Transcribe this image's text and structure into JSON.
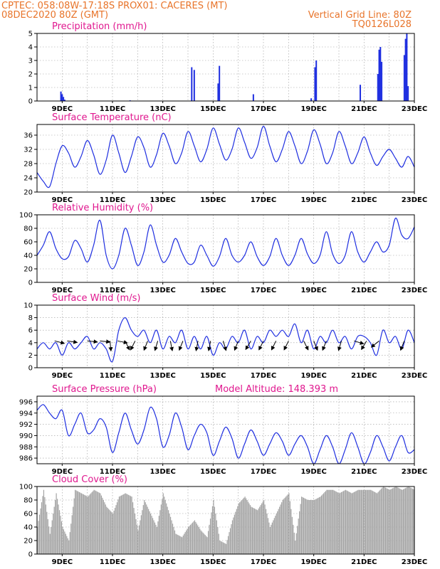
{
  "header": {
    "line1_left": "CPTEC:   058:08W-17:18S   PROX01: CACERES (MT)",
    "line2_left": "08DEC2020 80Z (GMT)",
    "line2_right": "Vertical Grid Line: 80Z",
    "line3_right": "TQ0126L028"
  },
  "colors": {
    "header": "#e8742a",
    "title": "#e0188f",
    "series": "#1f2fe0",
    "cloud": "#a4a4a4",
    "wind_arrow": "#000000"
  },
  "x_axis": {
    "start_day": 8,
    "end_day": 23,
    "tick_labels": [
      "9DEC",
      "11DEC",
      "13DEC",
      "15DEC",
      "17DEC",
      "19DEC",
      "21DEC",
      "23DEC"
    ],
    "tick_days": [
      9,
      11,
      13,
      15,
      17,
      19,
      21,
      23
    ]
  },
  "chart_data": [
    {
      "type": "bar",
      "title": "Precipitation  (mm/h)",
      "ylim": [
        0,
        5
      ],
      "yticks": [
        0,
        1,
        2,
        3,
        4,
        5
      ],
      "bars": [
        {
          "day": 8.95,
          "value": 0.7
        },
        {
          "day": 9.0,
          "value": 0.5
        },
        {
          "day": 9.05,
          "value": 0.3
        },
        {
          "day": 9.1,
          "value": 0.1
        },
        {
          "day": 11.7,
          "value": 0.05
        },
        {
          "day": 14.15,
          "value": 2.5
        },
        {
          "day": 14.25,
          "value": 2.3
        },
        {
          "day": 15.2,
          "value": 1.3
        },
        {
          "day": 15.25,
          "value": 2.6
        },
        {
          "day": 16.6,
          "value": 0.5
        },
        {
          "day": 18.9,
          "value": 0.2
        },
        {
          "day": 19.05,
          "value": 2.5
        },
        {
          "day": 19.1,
          "value": 3.0
        },
        {
          "day": 20.85,
          "value": 1.2
        },
        {
          "day": 21.55,
          "value": 2.0
        },
        {
          "day": 21.6,
          "value": 3.8
        },
        {
          "day": 21.65,
          "value": 4.0
        },
        {
          "day": 21.7,
          "value": 2.9
        },
        {
          "day": 22.6,
          "value": 3.4
        },
        {
          "day": 22.65,
          "value": 4.6
        },
        {
          "day": 22.7,
          "value": 5.0
        },
        {
          "day": 22.75,
          "value": 1.1
        }
      ]
    },
    {
      "type": "line",
      "title": "Surface Temperature  (nC)",
      "ylim": [
        20,
        39
      ],
      "yticks": [
        20,
        24,
        28,
        32,
        36
      ],
      "x": [
        8.0,
        8.25,
        8.5,
        8.75,
        9.0,
        9.25,
        9.5,
        9.75,
        10.0,
        10.25,
        10.5,
        10.75,
        11.0,
        11.25,
        11.5,
        11.75,
        12.0,
        12.25,
        12.5,
        12.75,
        13.0,
        13.25,
        13.5,
        13.75,
        14.0,
        14.25,
        14.5,
        14.75,
        15.0,
        15.25,
        15.5,
        15.75,
        16.0,
        16.25,
        16.5,
        16.75,
        17.0,
        17.25,
        17.5,
        17.75,
        18.0,
        18.25,
        18.5,
        18.75,
        19.0,
        19.25,
        19.5,
        19.75,
        20.0,
        20.25,
        20.5,
        20.75,
        21.0,
        21.25,
        21.5,
        21.75,
        22.0,
        22.25,
        22.5,
        22.75,
        23.0
      ],
      "y": [
        25.5,
        23.0,
        21.5,
        28.0,
        33.0,
        31.0,
        27.0,
        30.0,
        34.5,
        30.5,
        25.0,
        29.0,
        36.0,
        31.0,
        25.5,
        30.0,
        35.5,
        32.5,
        27.0,
        30.5,
        36.5,
        33.0,
        28.0,
        31.0,
        37.0,
        33.0,
        28.5,
        32.0,
        38.0,
        33.5,
        29.0,
        32.0,
        38.0,
        34.0,
        29.5,
        32.5,
        38.5,
        33.0,
        28.5,
        32.0,
        37.0,
        33.0,
        28.0,
        31.5,
        37.5,
        33.5,
        28.0,
        31.0,
        37.0,
        33.0,
        28.0,
        31.0,
        35.5,
        31.0,
        27.5,
        30.0,
        32.0,
        29.5,
        27.0,
        30.0,
        27.0
      ]
    },
    {
      "type": "line",
      "title": "Relative Humidity  (%)",
      "ylim": [
        0,
        100
      ],
      "yticks": [
        0,
        20,
        40,
        60,
        80,
        100
      ],
      "x": [
        8.0,
        8.25,
        8.5,
        8.75,
        9.0,
        9.25,
        9.5,
        9.75,
        10.0,
        10.25,
        10.5,
        10.75,
        11.0,
        11.25,
        11.5,
        11.75,
        12.0,
        12.25,
        12.5,
        12.75,
        13.0,
        13.25,
        13.5,
        13.75,
        14.0,
        14.25,
        14.5,
        14.75,
        15.0,
        15.25,
        15.5,
        15.75,
        16.0,
        16.25,
        16.5,
        16.75,
        17.0,
        17.25,
        17.5,
        17.75,
        18.0,
        18.25,
        18.5,
        18.75,
        19.0,
        19.25,
        19.5,
        19.75,
        20.0,
        20.25,
        20.5,
        20.75,
        21.0,
        21.25,
        21.5,
        21.75,
        22.0,
        22.25,
        22.5,
        22.75,
        23.0
      ],
      "y": [
        40,
        55,
        75,
        50,
        35,
        38,
        62,
        50,
        30,
        55,
        92,
        40,
        20,
        40,
        80,
        55,
        25,
        45,
        85,
        55,
        30,
        40,
        65,
        45,
        28,
        30,
        55,
        40,
        24,
        38,
        65,
        40,
        30,
        40,
        60,
        38,
        25,
        38,
        65,
        40,
        25,
        40,
        65,
        42,
        28,
        40,
        75,
        42,
        28,
        40,
        75,
        45,
        30,
        45,
        60,
        45,
        55,
        95,
        70,
        65,
        82
      ]
    },
    {
      "type": "line",
      "title": "Surface Wind  (m/s)",
      "ylim": [
        0,
        10
      ],
      "yticks": [
        0,
        2,
        4,
        6,
        8,
        10
      ],
      "x": [
        8.0,
        8.25,
        8.5,
        8.75,
        9.0,
        9.25,
        9.5,
        9.75,
        10.0,
        10.25,
        10.5,
        10.75,
        11.0,
        11.25,
        11.5,
        11.75,
        12.0,
        12.25,
        12.5,
        12.75,
        13.0,
        13.25,
        13.5,
        13.75,
        14.0,
        14.25,
        14.5,
        14.75,
        15.0,
        15.25,
        15.5,
        15.75,
        16.0,
        16.25,
        16.5,
        16.75,
        17.0,
        17.25,
        17.5,
        17.75,
        18.0,
        18.25,
        18.5,
        18.75,
        19.0,
        19.25,
        19.5,
        19.75,
        20.0,
        20.25,
        20.5,
        20.75,
        21.0,
        21.25,
        21.5,
        21.75,
        22.0,
        22.25,
        22.5,
        22.75,
        23.0
      ],
      "y": [
        3,
        4,
        3,
        4,
        2,
        4,
        3,
        4,
        5,
        3,
        4,
        3,
        1,
        6,
        8,
        6,
        5,
        6,
        4,
        6,
        3,
        5,
        4,
        6,
        3,
        5,
        3,
        5,
        2,
        4,
        3,
        5,
        4,
        6,
        3,
        5,
        4,
        6,
        5,
        6,
        5,
        7,
        4,
        6,
        3,
        5,
        4,
        6,
        4,
        5,
        3,
        5,
        5,
        4,
        2,
        6,
        4,
        5,
        3,
        6,
        4
      ],
      "arrows": [
        {
          "day": 8.7,
          "dx": 1,
          "dy": 0.25
        },
        {
          "day": 9.2,
          "dx": 1,
          "dy": 0.15
        },
        {
          "day": 10.0,
          "dx": 1,
          "dy": 0.1
        },
        {
          "day": 10.5,
          "dx": 1,
          "dy": 0.1
        },
        {
          "day": 10.9,
          "dx": 0.1,
          "dy": 1
        },
        {
          "day": 11.2,
          "dx": 1,
          "dy": 0.2
        },
        {
          "day": 11.5,
          "dx": 0.5,
          "dy": 1
        },
        {
          "day": 11.9,
          "dx": -0.5,
          "dy": 1
        },
        {
          "day": 12.4,
          "dx": -0.4,
          "dy": 1
        },
        {
          "day": 12.8,
          "dx": -0.3,
          "dy": 1
        },
        {
          "day": 13.3,
          "dx": 0.2,
          "dy": 1
        },
        {
          "day": 13.8,
          "dx": -0.4,
          "dy": 1
        },
        {
          "day": 14.4,
          "dx": -0.2,
          "dy": 1
        },
        {
          "day": 14.9,
          "dx": -0.2,
          "dy": 1
        },
        {
          "day": 15.4,
          "dx": 0.3,
          "dy": 1
        },
        {
          "day": 16.0,
          "dx": -0.4,
          "dy": 1
        },
        {
          "day": 16.5,
          "dx": -0.6,
          "dy": 1
        },
        {
          "day": 17.0,
          "dx": -0.5,
          "dy": 1
        },
        {
          "day": 17.5,
          "dx": -0.5,
          "dy": 1
        },
        {
          "day": 18.0,
          "dx": -0.5,
          "dy": 1
        },
        {
          "day": 18.6,
          "dx": 0.5,
          "dy": 1
        },
        {
          "day": 19.0,
          "dx": 0.4,
          "dy": 1
        },
        {
          "day": 19.5,
          "dx": -0.4,
          "dy": 1
        },
        {
          "day": 20.1,
          "dx": -0.3,
          "dy": 1
        },
        {
          "day": 20.6,
          "dx": 1,
          "dy": 0.3
        },
        {
          "day": 21.1,
          "dx": -0.6,
          "dy": 1
        },
        {
          "day": 21.6,
          "dx": -1,
          "dy": 0.8
        },
        {
          "day": 22.6,
          "dx": -0.4,
          "dy": 1
        }
      ]
    },
    {
      "type": "line",
      "title": "Surface Pressure  (hPa)",
      "subtitle": "Model Altitude:  148.393  m",
      "ylim": [
        985,
        997
      ],
      "yticks": [
        986,
        988,
        990,
        992,
        994,
        996
      ],
      "x": [
        8.0,
        8.25,
        8.5,
        8.75,
        9.0,
        9.25,
        9.5,
        9.75,
        10.0,
        10.25,
        10.5,
        10.75,
        11.0,
        11.25,
        11.5,
        11.75,
        12.0,
        12.25,
        12.5,
        12.75,
        13.0,
        13.25,
        13.5,
        13.75,
        14.0,
        14.25,
        14.5,
        14.75,
        15.0,
        15.25,
        15.5,
        15.75,
        16.0,
        16.25,
        16.5,
        16.75,
        17.0,
        17.25,
        17.5,
        17.75,
        18.0,
        18.25,
        18.5,
        18.75,
        19.0,
        19.25,
        19.5,
        19.75,
        20.0,
        20.25,
        20.5,
        20.75,
        21.0,
        21.25,
        21.5,
        21.75,
        22.0,
        22.25,
        22.5,
        22.75,
        23.0
      ],
      "y": [
        994.5,
        995.5,
        994.0,
        993.0,
        994.5,
        990.0,
        992.0,
        994.0,
        990.5,
        991.0,
        993.0,
        991.5,
        987.0,
        990.5,
        994.0,
        991.0,
        988.5,
        991.0,
        995.0,
        993.0,
        988.0,
        990.0,
        994.0,
        991.5,
        987.5,
        990.0,
        992.0,
        990.5,
        986.5,
        989.0,
        991.5,
        989.5,
        986.0,
        988.5,
        991.0,
        989.0,
        986.5,
        988.5,
        990.5,
        989.0,
        986.5,
        988.5,
        990.0,
        988.0,
        985.0,
        987.5,
        990.0,
        988.0,
        985.0,
        987.5,
        990.5,
        988.0,
        985.0,
        987.0,
        990.0,
        988.0,
        985.5,
        988.0,
        990.0,
        987.0,
        987.5
      ]
    },
    {
      "type": "area",
      "title": "Cloud Cover  (%)",
      "ylim": [
        0,
        100
      ],
      "yticks": [
        0,
        20,
        40,
        60,
        80,
        100
      ],
      "x": [
        8.0,
        8.25,
        8.5,
        8.75,
        9.0,
        9.25,
        9.5,
        9.75,
        10.0,
        10.25,
        10.5,
        10.75,
        11.0,
        11.25,
        11.5,
        11.75,
        12.0,
        12.25,
        12.5,
        12.75,
        13.0,
        13.25,
        13.5,
        13.75,
        14.0,
        14.25,
        14.5,
        14.75,
        15.0,
        15.25,
        15.5,
        15.75,
        16.0,
        16.25,
        16.5,
        16.75,
        17.0,
        17.25,
        17.5,
        17.75,
        18.0,
        18.25,
        18.5,
        18.75,
        19.0,
        19.25,
        19.5,
        19.75,
        20.0,
        20.25,
        20.5,
        20.75,
        21.0,
        21.25,
        21.5,
        21.75,
        22.0,
        22.25,
        22.5,
        22.75,
        23.0
      ],
      "y": [
        40,
        95,
        30,
        90,
        40,
        20,
        95,
        90,
        85,
        95,
        90,
        70,
        60,
        85,
        90,
        85,
        35,
        80,
        60,
        40,
        90,
        60,
        30,
        25,
        40,
        50,
        35,
        25,
        80,
        20,
        15,
        50,
        75,
        85,
        70,
        65,
        80,
        40,
        60,
        80,
        90,
        20,
        85,
        80,
        80,
        85,
        95,
        95,
        90,
        95,
        90,
        95,
        95,
        95,
        90,
        100,
        95,
        100,
        95,
        100,
        95
      ]
    }
  ]
}
